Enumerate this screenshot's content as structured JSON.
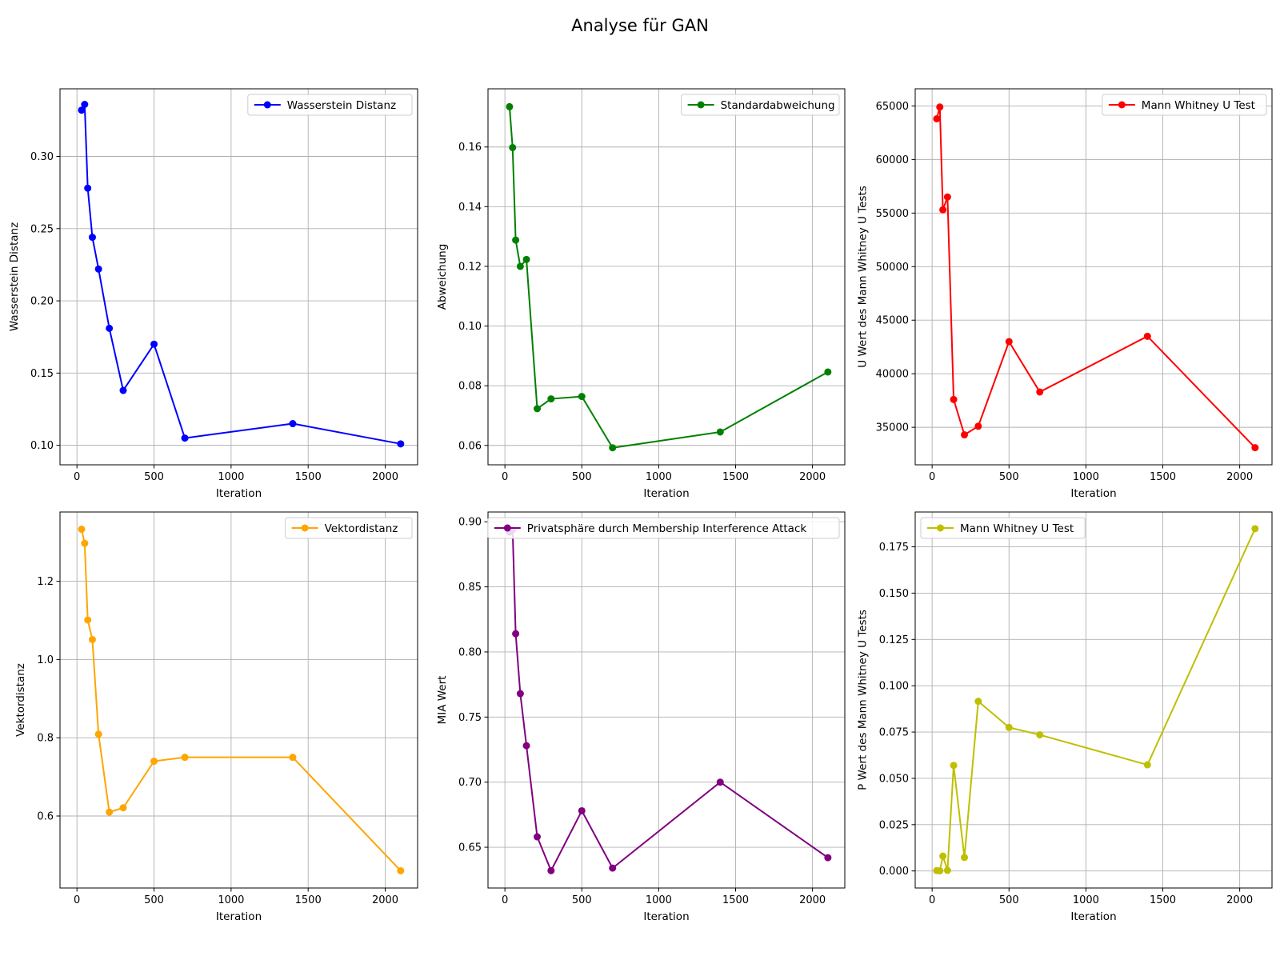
{
  "suptitle": "Analyse für GAN",
  "chart_data": [
    {
      "type": "line",
      "xlabel": "Iteration",
      "ylabel": "Wasserstein Distanz",
      "xlim": [
        -110,
        2210
      ],
      "ylim": [
        0.0865,
        0.3468
      ],
      "xticks": [
        0,
        500,
        1000,
        1500,
        2000
      ],
      "yticks": [
        0.1,
        0.15,
        0.2,
        0.25,
        0.3
      ],
      "ytick_labels": [
        "0.10",
        "0.15",
        "0.20",
        "0.25",
        "0.30"
      ],
      "grid": true,
      "legend_position": "upper right",
      "series": [
        {
          "name": "Wasserstein Distanz",
          "color": "#0000ff",
          "x": [
            30,
            50,
            70,
            100,
            140,
            210,
            300,
            500,
            700,
            1400,
            2100
          ],
          "y": [
            0.332,
            0.336,
            0.278,
            0.244,
            0.222,
            0.181,
            0.138,
            0.17,
            0.105,
            0.115,
            0.101
          ]
        }
      ]
    },
    {
      "type": "line",
      "xlabel": "Iteration",
      "ylabel": "Abweichung",
      "xlim": [
        -110,
        2210
      ],
      "ylim": [
        0.0535,
        0.1795
      ],
      "xticks": [
        0,
        500,
        1000,
        1500,
        2000
      ],
      "yticks": [
        0.06,
        0.08,
        0.1,
        0.12,
        0.14,
        0.16
      ],
      "ytick_labels": [
        "0.06",
        "0.08",
        "0.10",
        "0.12",
        "0.14",
        "0.16"
      ],
      "grid": true,
      "legend_position": "upper right",
      "series": [
        {
          "name": "Standardabweichung",
          "color": "#008000",
          "x": [
            30,
            50,
            70,
            100,
            140,
            210,
            300,
            500,
            700,
            1400,
            2100
          ],
          "y": [
            0.1735,
            0.1598,
            0.1288,
            0.12,
            0.1223,
            0.0723,
            0.0756,
            0.0764,
            0.0592,
            0.0645,
            0.0846
          ]
        }
      ]
    },
    {
      "type": "line",
      "xlabel": "Iteration",
      "ylabel": "U Wert des Mann Whitney U Tests",
      "xlim": [
        -110,
        2210
      ],
      "ylim": [
        31500,
        66600
      ],
      "xticks": [
        0,
        500,
        1000,
        1500,
        2000
      ],
      "yticks": [
        35000,
        40000,
        45000,
        50000,
        55000,
        60000,
        65000
      ],
      "ytick_labels": [
        "35000",
        "40000",
        "45000",
        "50000",
        "55000",
        "60000",
        "65000"
      ],
      "grid": true,
      "legend_position": "upper right",
      "series": [
        {
          "name": "Mann Whitney U Test",
          "color": "#ff0000",
          "x": [
            30,
            50,
            70,
            100,
            140,
            210,
            300,
            500,
            700,
            1400,
            2100
          ],
          "y": [
            63800,
            64900,
            55300,
            56500,
            37600,
            34300,
            35100,
            43000,
            38300,
            43500,
            33100
          ]
        }
      ]
    },
    {
      "type": "line",
      "xlabel": "Iteration",
      "ylabel": "Vektordistanz",
      "xlim": [
        -110,
        2210
      ],
      "ylim": [
        0.416,
        1.377
      ],
      "xticks": [
        0,
        500,
        1000,
        1500,
        2000
      ],
      "yticks": [
        0.6,
        0.8,
        1.0,
        1.2
      ],
      "ytick_labels": [
        "0.6",
        "0.8",
        "1.0",
        "1.2"
      ],
      "grid": true,
      "legend_position": "upper right",
      "series": [
        {
          "name": "Vektordistanz",
          "color": "#ffa500",
          "x": [
            30,
            50,
            70,
            100,
            140,
            210,
            300,
            500,
            700,
            1400,
            2100
          ],
          "y": [
            1.333,
            1.297,
            1.101,
            1.051,
            0.809,
            0.61,
            0.621,
            0.74,
            0.75,
            0.75,
            0.46
          ]
        }
      ]
    },
    {
      "type": "line",
      "xlabel": "Iteration",
      "ylabel": "MIA Wert",
      "xlim": [
        -110,
        2210
      ],
      "ylim": [
        0.6187,
        0.9075
      ],
      "xticks": [
        0,
        500,
        1000,
        1500,
        2000
      ],
      "yticks": [
        0.65,
        0.7,
        0.75,
        0.8,
        0.85,
        0.9
      ],
      "ytick_labels": [
        "0.65",
        "0.70",
        "0.75",
        "0.80",
        "0.85",
        "0.90"
      ],
      "grid": true,
      "legend_position": "upper right",
      "series": [
        {
          "name": "Privatsphäre durch Membership Interference Attack",
          "color": "#800080",
          "x": [
            30,
            50,
            70,
            100,
            140,
            210,
            300,
            500,
            700,
            1400,
            2100
          ],
          "y": [
            0.892,
            0.894,
            0.814,
            0.768,
            0.728,
            0.658,
            0.632,
            0.678,
            0.634,
            0.7,
            0.642
          ]
        }
      ]
    },
    {
      "type": "line",
      "xlabel": "Iteration",
      "ylabel": "P Wert des Mann Whitney U Tests",
      "xlim": [
        -110,
        2210
      ],
      "ylim": [
        -0.0092,
        0.1938
      ],
      "xticks": [
        0,
        500,
        1000,
        1500,
        2000
      ],
      "yticks": [
        0.0,
        0.025,
        0.05,
        0.075,
        0.1,
        0.125,
        0.15,
        0.175
      ],
      "ytick_labels": [
        "0.000",
        "0.025",
        "0.050",
        "0.075",
        "0.100",
        "0.125",
        "0.150",
        "0.175"
      ],
      "grid": true,
      "legend_position": "upper left",
      "series": [
        {
          "name": "Mann Whitney U Test",
          "color": "#bfbf00",
          "x": [
            30,
            50,
            70,
            100,
            140,
            210,
            300,
            500,
            700,
            1400,
            2100
          ],
          "y": [
            0.0002,
            0.0001,
            0.008,
            0.0003,
            0.057,
            0.0073,
            0.0916,
            0.0775,
            0.0735,
            0.0573,
            0.1848
          ]
        }
      ]
    }
  ]
}
